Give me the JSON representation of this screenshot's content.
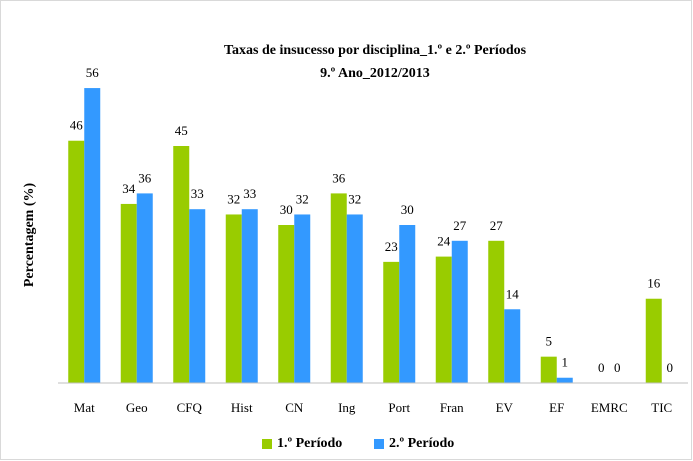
{
  "chart_data": {
    "type": "bar",
    "title": "Taxas de insucesso por disciplina_1.º e 2.º Períodos",
    "subtitle": "9.º Ano_2012/2013",
    "y_label": "Percentagem (%)",
    "categories": [
      "Mat",
      "Geo",
      "CFQ",
      "Hist",
      "CN",
      "Ing",
      "Port",
      "Fran",
      "EV",
      "EF",
      "EMRC",
      "TIC"
    ],
    "series": [
      {
        "name": "1.º Período",
        "color": "#99cc00",
        "values": [
          46,
          34,
          45,
          32,
          30,
          36,
          23,
          24,
          27,
          5,
          0,
          16
        ]
      },
      {
        "name": "2.º Período",
        "color": "#3399ff",
        "values": [
          56,
          36,
          33,
          33,
          32,
          32,
          30,
          27,
          14,
          1,
          0,
          0
        ]
      }
    ],
    "ylim": [
      0,
      60
    ],
    "legend": "bottom"
  }
}
